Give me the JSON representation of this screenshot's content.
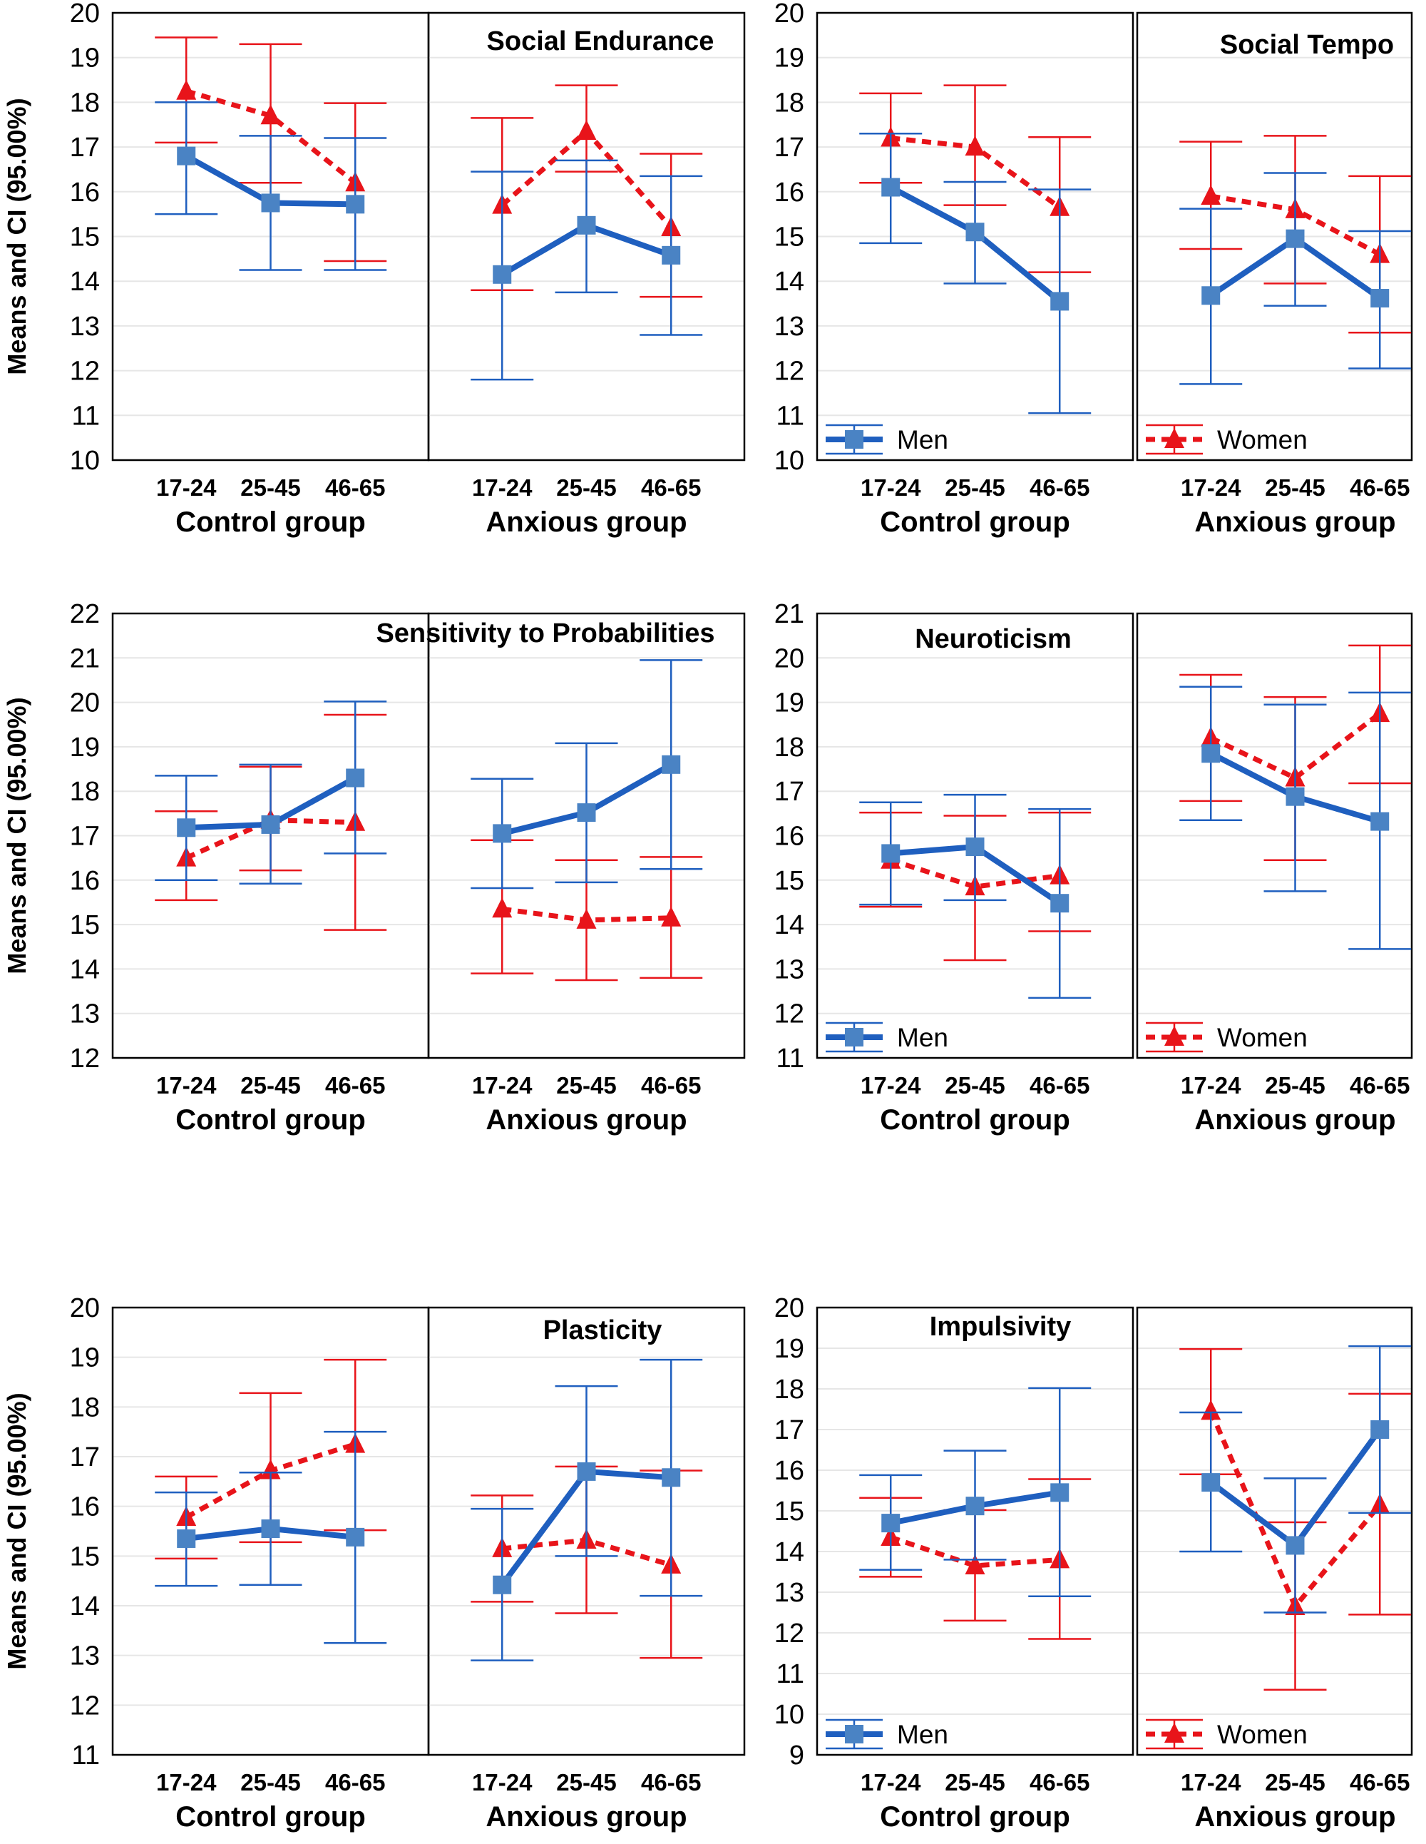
{
  "colors": {
    "men": "#1f5fbf",
    "men_marker": "#4a83c4",
    "women": "#e8141a",
    "grid": "#e6e6e6",
    "frame": "#000000"
  },
  "ylabel": "Means and CI (95.00%)",
  "groups": [
    "Control group",
    "Anxious group"
  ],
  "categories": [
    "17-24",
    "25-45",
    "46-65"
  ],
  "legend": {
    "men": "Men",
    "women": "Women"
  },
  "chart_data": [
    {
      "type": "line",
      "title": "Social Endurance",
      "ylim": [
        10,
        20
      ],
      "yticks": [
        10,
        11,
        12,
        13,
        14,
        15,
        16,
        17,
        18,
        19,
        20
      ],
      "panels": [
        {
          "group": "Control group",
          "series": [
            {
              "name": "Men",
              "values": [
                16.8,
                15.75,
                15.72
              ],
              "lower": [
                15.5,
                14.25,
                14.25
              ],
              "upper": [
                18.0,
                17.25,
                17.2
              ]
            },
            {
              "name": "Women",
              "values": [
                18.25,
                17.7,
                16.2
              ],
              "lower": [
                17.1,
                16.2,
                14.45
              ],
              "upper": [
                19.45,
                19.3,
                17.98
              ]
            }
          ]
        },
        {
          "group": "Anxious group",
          "series": [
            {
              "name": "Men",
              "values": [
                14.15,
                15.25,
                14.58
              ],
              "lower": [
                11.8,
                13.75,
                12.8
              ],
              "upper": [
                16.45,
                16.7,
                16.35
              ]
            },
            {
              "name": "Women",
              "values": [
                15.7,
                17.35,
                15.2
              ],
              "lower": [
                13.8,
                16.45,
                13.65
              ],
              "upper": [
                17.65,
                18.38,
                16.85
              ]
            }
          ]
        }
      ]
    },
    {
      "type": "line",
      "title": "Social Tempo",
      "ylim": [
        10,
        20
      ],
      "yticks": [
        10,
        11,
        12,
        13,
        14,
        15,
        16,
        17,
        18,
        19,
        20
      ],
      "panels": [
        {
          "group": "Control group",
          "series": [
            {
              "name": "Men",
              "values": [
                16.1,
                15.1,
                13.55
              ],
              "lower": [
                14.85,
                13.95,
                11.05
              ],
              "upper": [
                17.3,
                16.22,
                16.05
              ]
            },
            {
              "name": "Women",
              "values": [
                17.2,
                17.0,
                15.65
              ],
              "lower": [
                16.2,
                15.7,
                14.2
              ],
              "upper": [
                18.2,
                18.38,
                17.22
              ]
            }
          ]
        },
        {
          "group": "Anxious group",
          "series": [
            {
              "name": "Men",
              "values": [
                13.68,
                14.95,
                13.62
              ],
              "lower": [
                11.7,
                13.45,
                12.05
              ],
              "upper": [
                15.62,
                16.42,
                15.12
              ]
            },
            {
              "name": "Women",
              "values": [
                15.9,
                15.6,
                14.6
              ],
              "lower": [
                14.72,
                13.95,
                12.85
              ],
              "upper": [
                17.12,
                17.25,
                16.35
              ]
            }
          ]
        }
      ]
    },
    {
      "type": "line",
      "title": "Sensitivity to Probabilities",
      "ylim": [
        12,
        22
      ],
      "yticks": [
        12,
        13,
        14,
        15,
        16,
        17,
        18,
        19,
        20,
        21,
        22
      ],
      "panels": [
        {
          "group": "Control group",
          "series": [
            {
              "name": "Men",
              "values": [
                17.18,
                17.25,
                18.3
              ],
              "lower": [
                16.0,
                15.92,
                16.6
              ],
              "upper": [
                18.35,
                18.6,
                20.02
              ]
            },
            {
              "name": "Women",
              "values": [
                16.5,
                17.35,
                17.3
              ],
              "lower": [
                15.55,
                16.22,
                14.88
              ],
              "upper": [
                17.55,
                18.55,
                19.72
              ]
            }
          ]
        },
        {
          "group": "Anxious group",
          "series": [
            {
              "name": "Men",
              "values": [
                17.05,
                17.52,
                18.6
              ],
              "lower": [
                15.82,
                15.95,
                16.25
              ],
              "upper": [
                18.28,
                19.08,
                20.95
              ]
            },
            {
              "name": "Women",
              "values": [
                15.35,
                15.1,
                15.15
              ],
              "lower": [
                13.9,
                13.75,
                13.8
              ],
              "upper": [
                16.9,
                16.45,
                16.52
              ]
            }
          ]
        }
      ]
    },
    {
      "type": "line",
      "title": "Neuroticism",
      "ylim": [
        11,
        21
      ],
      "yticks": [
        11,
        12,
        13,
        14,
        15,
        16,
        17,
        18,
        19,
        20,
        21
      ],
      "panels": [
        {
          "group": "Control group",
          "series": [
            {
              "name": "Men",
              "values": [
                15.6,
                15.75,
                14.48
              ],
              "lower": [
                14.45,
                14.55,
                12.35
              ],
              "upper": [
                16.75,
                16.92,
                16.6
              ]
            },
            {
              "name": "Women",
              "values": [
                15.45,
                14.85,
                15.1
              ],
              "lower": [
                14.4,
                13.2,
                13.85
              ],
              "upper": [
                16.52,
                16.45,
                16.52
              ]
            }
          ]
        },
        {
          "group": "Anxious group",
          "series": [
            {
              "name": "Men",
              "values": [
                17.85,
                16.88,
                16.32
              ],
              "lower": [
                16.35,
                14.75,
                13.45
              ],
              "upper": [
                19.35,
                18.95,
                19.22
              ]
            },
            {
              "name": "Women",
              "values": [
                18.2,
                17.3,
                18.75
              ],
              "lower": [
                16.78,
                15.45,
                17.18
              ],
              "upper": [
                19.62,
                19.12,
                20.28
              ]
            }
          ]
        }
      ]
    },
    {
      "type": "line",
      "title": "Plasticity",
      "ylim": [
        11,
        20
      ],
      "yticks": [
        11,
        12,
        13,
        14,
        15,
        16,
        17,
        18,
        19,
        20
      ],
      "panels": [
        {
          "group": "Control group",
          "series": [
            {
              "name": "Men",
              "values": [
                15.35,
                15.55,
                15.38
              ],
              "lower": [
                14.4,
                14.42,
                13.25
              ],
              "upper": [
                16.28,
                16.68,
                17.5
              ]
            },
            {
              "name": "Women",
              "values": [
                15.78,
                16.72,
                17.25
              ],
              "lower": [
                14.95,
                15.28,
                15.52
              ],
              "upper": [
                16.6,
                18.28,
                18.95
              ]
            }
          ]
        },
        {
          "group": "Anxious group",
          "series": [
            {
              "name": "Men",
              "values": [
                14.42,
                16.7,
                16.58
              ],
              "lower": [
                12.9,
                15.0,
                14.2
              ],
              "upper": [
                15.95,
                18.42,
                18.95
              ]
            },
            {
              "name": "Women",
              "values": [
                15.15,
                15.32,
                14.82
              ],
              "lower": [
                14.08,
                13.85,
                12.95
              ],
              "upper": [
                16.22,
                16.8,
                16.72
              ]
            }
          ]
        }
      ]
    },
    {
      "type": "line",
      "title": "Impulsivity",
      "ylim": [
        9,
        20
      ],
      "yticks": [
        9,
        10,
        11,
        12,
        13,
        14,
        15,
        16,
        17,
        18,
        19,
        20
      ],
      "panels": [
        {
          "group": "Control group",
          "series": [
            {
              "name": "Men",
              "values": [
                14.7,
                15.12,
                15.45
              ],
              "lower": [
                13.55,
                13.8,
                12.9
              ],
              "upper": [
                15.88,
                16.48,
                18.02
              ]
            },
            {
              "name": "Women",
              "values": [
                14.35,
                13.65,
                13.8
              ],
              "lower": [
                13.38,
                12.3,
                11.85
              ],
              "upper": [
                15.32,
                15.02,
                15.78
              ]
            }
          ]
        },
        {
          "group": "Anxious group",
          "series": [
            {
              "name": "Men",
              "values": [
                15.7,
                14.15,
                17.0
              ],
              "lower": [
                14.0,
                12.5,
                14.95
              ],
              "upper": [
                17.42,
                15.8,
                19.05
              ]
            },
            {
              "name": "Women",
              "values": [
                17.45,
                12.65,
                15.15
              ],
              "lower": [
                15.9,
                10.6,
                12.45
              ],
              "upper": [
                18.98,
                14.72,
                17.88
              ]
            }
          ]
        }
      ]
    }
  ]
}
